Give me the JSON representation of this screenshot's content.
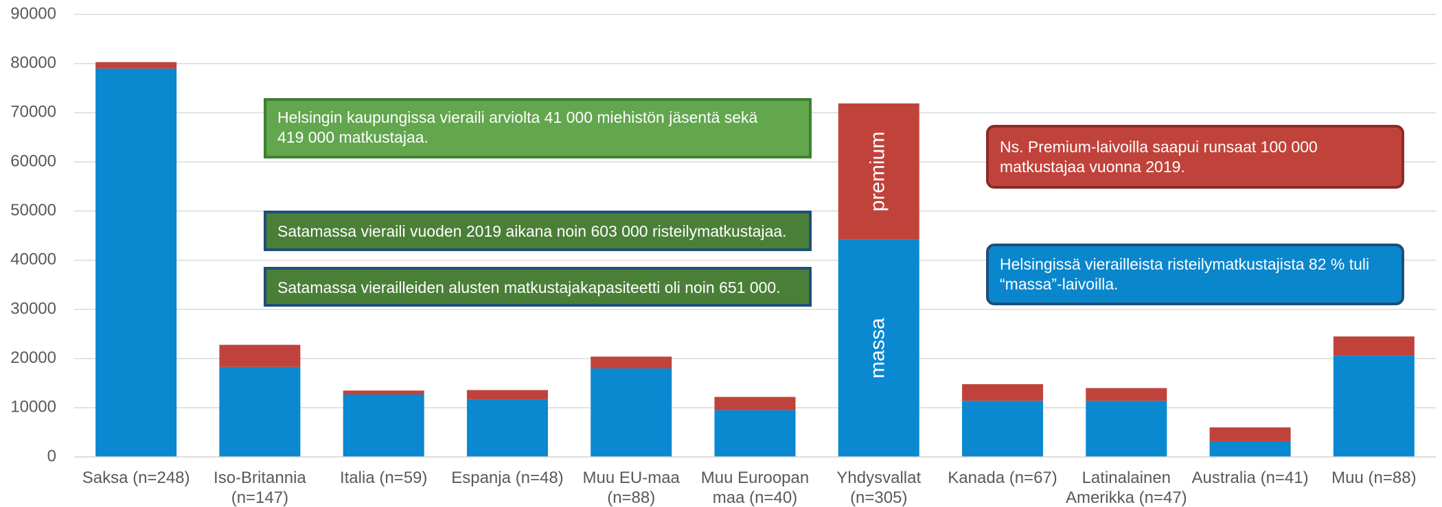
{
  "chart_data": {
    "type": "stacked_bar",
    "categories": [
      "Saksa (n=248)",
      "Iso-Britannia\n(n=147)",
      "Italia (n=59)",
      "Espanja (n=48)",
      "Muu EU-maa\n(n=88)",
      "Muu Euroopan\nmaa (n=40)",
      "Yhdysvallat\n(n=305)",
      "Kanada (n=67)",
      "Latinalainen\nAmerikka (n=47)",
      "Australia (n=41)",
      "Muu (n=88)"
    ],
    "series": [
      {
        "name": "massa",
        "color": "#0a88d0",
        "values": [
          79000,
          18300,
          12700,
          11600,
          18000,
          9500,
          44200,
          11400,
          11400,
          3200,
          20600
        ]
      },
      {
        "name": "premium",
        "color": "#c0433b",
        "values": [
          1300,
          4500,
          800,
          2000,
          2400,
          2700,
          27700,
          3400,
          2600,
          2800,
          3900
        ]
      }
    ],
    "ylim": [
      0,
      90000
    ],
    "yticks": [
      0,
      10000,
      20000,
      30000,
      40000,
      50000,
      60000,
      70000,
      80000,
      90000
    ],
    "grid": true,
    "annotations": [
      "Helsingin kaupungissa vieraili arviolta  41 000 miehistön jäsentä sekä\n 419 000 matkustajaa.",
      "Satamassa vieraili vuoden 2019 aikana noin 603 000 risteilymatkustajaa.",
      "Satamassa vierailleiden alusten matkustajakapasiteetti oli noin 651 000.",
      "Ns. Premium-laivoilla saapui runsaat 100 000\nmatkustajaa vuonna 2019.",
      "Helsingissä vierailleista  risteilymatkustajista 82 % tuli\n“massa”-laivoilla."
    ]
  }
}
